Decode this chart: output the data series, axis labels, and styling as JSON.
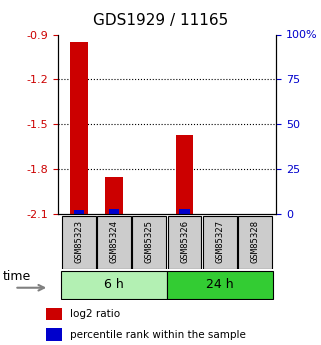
{
  "title": "GDS1929 / 11165",
  "samples": [
    "GSM85323",
    "GSM85324",
    "GSM85325",
    "GSM85326",
    "GSM85327",
    "GSM85328"
  ],
  "log2_values": [
    -0.95,
    -1.85,
    -2.1,
    -1.57,
    -2.1,
    -2.1
  ],
  "percentile_values": [
    2,
    3,
    0,
    3,
    0,
    0
  ],
  "groups": [
    {
      "label": "6 h",
      "indices": [
        0,
        1,
        2
      ],
      "color": "#b3f0b3"
    },
    {
      "label": "24 h",
      "indices": [
        3,
        4,
        5
      ],
      "color": "#33cc33"
    }
  ],
  "ylim_left": [
    -2.1,
    -0.9
  ],
  "ylim_right": [
    0,
    100
  ],
  "yticks_left": [
    -2.1,
    -1.8,
    -1.5,
    -1.2,
    -0.9
  ],
  "yticks_right": [
    0,
    25,
    50,
    75,
    100
  ],
  "ytick_labels_right": [
    "0",
    "25",
    "50",
    "75",
    "100%"
  ],
  "bar_color_red": "#cc0000",
  "bar_color_blue": "#0000cc",
  "bar_width": 0.5,
  "grid_color": "#000000",
  "bg_color": "#ffffff",
  "sample_box_color": "#cccccc",
  "legend_red_label": "log2 ratio",
  "legend_blue_label": "percentile rank within the sample",
  "time_label": "time",
  "left_tick_color": "#cc0000",
  "right_tick_color": "#0000cc"
}
